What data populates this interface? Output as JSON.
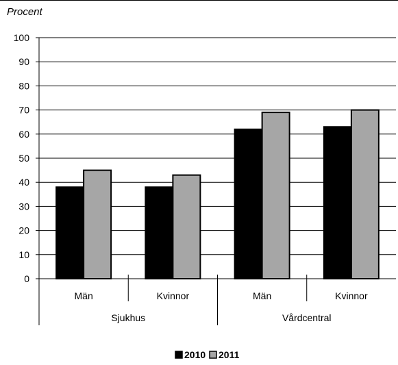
{
  "unit_label": "Procent",
  "chart_data": {
    "type": "bar",
    "ylabel": "Procent",
    "ylim": [
      0,
      100
    ],
    "yticks": [
      0,
      10,
      20,
      30,
      40,
      50,
      60,
      70,
      80,
      90,
      100
    ],
    "grid": true,
    "legend_position": "bottom-center",
    "categories": [
      "Män",
      "Kvinnor",
      "Män",
      "Kvinnor"
    ],
    "groups": [
      {
        "label": "Sjukhus",
        "categories": [
          "Män",
          "Kvinnor"
        ]
      },
      {
        "label": "Vårdcentral",
        "categories": [
          "Män",
          "Kvinnor"
        ]
      }
    ],
    "series": [
      {
        "name": "2010",
        "color": "#000000",
        "values": [
          38,
          38,
          62,
          63
        ]
      },
      {
        "name": "2011",
        "color": "#a6a6a6",
        "values": [
          45,
          43,
          69,
          70
        ]
      }
    ]
  }
}
